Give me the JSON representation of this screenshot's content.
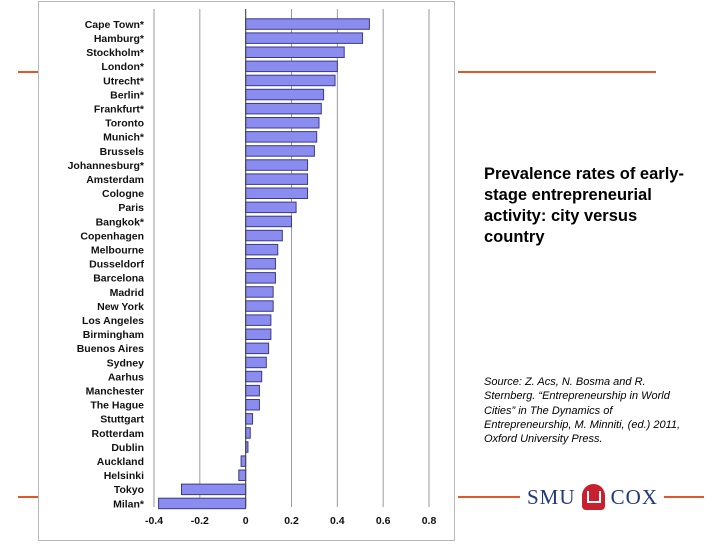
{
  "slide": {
    "title": "Prevalence rates of early-stage entrepreneurial activity: city versus country",
    "source": "Source:  Z. Acs, N. Bosma and R. Sternberg. “Entrepreneurship in World Cities” in The Dynamics of Entrepreneurship, M. Minniti, (ed.) 2011, Oxford University Press.",
    "logo": {
      "left": "SMU",
      "right": "COX"
    },
    "colors": {
      "accent": "#e2572a",
      "bar_fill": "#8b8cf0",
      "bar_stroke": "#3a3a88",
      "logo_text": "#1f3a7a"
    }
  },
  "chart_data": {
    "type": "bar",
    "orientation": "horizontal",
    "categories": [
      "Cape Town*",
      "Hamburg*",
      "Stockholm*",
      "London*",
      "Utrecht*",
      "Berlin*",
      "Frankfurt*",
      "Toronto",
      "Munich*",
      "Brussels",
      "Johannesburg*",
      "Amsterdam",
      "Cologne",
      "Paris",
      "Bangkok*",
      "Copenhagen",
      "Melbourne",
      "Dusseldorf",
      "Barcelona",
      "Madrid",
      "New York",
      "Los Angeles",
      "Birmingham",
      "Buenos Aires",
      "Sydney",
      "Aarhus",
      "Manchester",
      "The Hague",
      "Stuttgart",
      "Rotterdam",
      "Dublin",
      "Auckland",
      "Helsinki",
      "Tokyo",
      "Milan*"
    ],
    "values": [
      0.54,
      0.51,
      0.43,
      0.4,
      0.39,
      0.34,
      0.33,
      0.32,
      0.31,
      0.3,
      0.27,
      0.27,
      0.27,
      0.22,
      0.2,
      0.16,
      0.14,
      0.13,
      0.13,
      0.12,
      0.12,
      0.11,
      0.11,
      0.1,
      0.09,
      0.07,
      0.06,
      0.06,
      0.03,
      0.02,
      0.01,
      -0.02,
      -0.03,
      -0.28,
      -0.38
    ],
    "xlim": [
      -0.4,
      0.8
    ],
    "xticks": [
      "-0.4",
      "-0.2",
      "0",
      "0.2",
      "0.4",
      "0.6",
      "0.8"
    ],
    "xtick_values": [
      -0.4,
      -0.2,
      0,
      0.2,
      0.4,
      0.6,
      0.8
    ],
    "title": "",
    "xlabel": "",
    "ylabel": "",
    "grid": "vertical"
  }
}
